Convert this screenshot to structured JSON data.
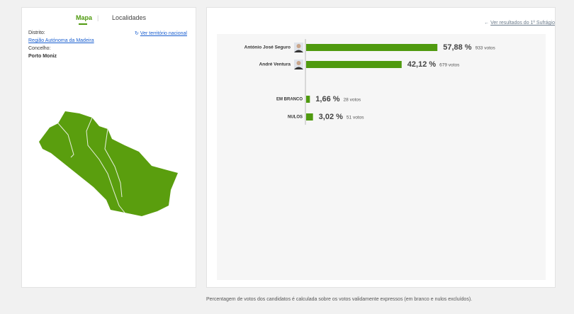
{
  "tabs": [
    "Mapa",
    "Localidades"
  ],
  "district_label": "Distrito:",
  "national_link": "Ver território nacional",
  "district": "Região Autónoma da Madeira",
  "council_label": "Concelho:",
  "council": "Porto Moniz",
  "back_link": "Ver resultados do 1º Sufrágio",
  "footnote": "Percentagem de votos dos candidatos é calculada sobre os votos validamente expressos (em branco e nulos excluídos).",
  "chart_data": {
    "type": "bar",
    "orientation": "horizontal",
    "categories": [
      "António José Seguro",
      "André Ventura",
      "EM BRANCO",
      "NULOS"
    ],
    "values": [
      57.88,
      42.12,
      1.66,
      3.02
    ],
    "value_labels": [
      "57,88 %",
      "42,12 %",
      "1,66 %",
      "3,02 %"
    ],
    "votes": [
      "933 votos",
      "679 votos",
      "28 votos",
      "51 votos"
    ],
    "color": "#4f9a0f",
    "xlim": [
      0,
      100
    ]
  }
}
